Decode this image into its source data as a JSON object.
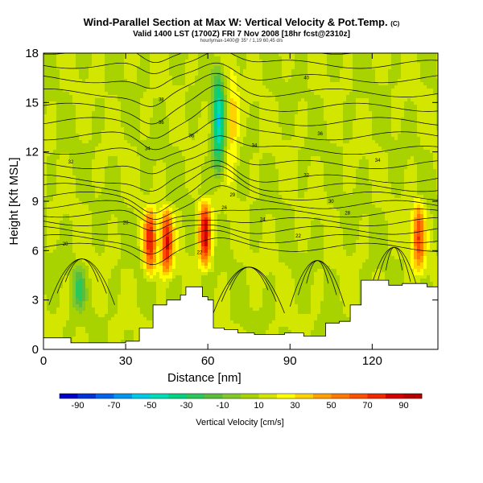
{
  "header": {
    "title": "Wind-Parallel Section at Max W: Vertical Velocity & Pot.Temp.",
    "title_mark": "(C)",
    "subtitle": "Valid 1400 LST (1700Z) FRI 7 Nov 2008 [18hr fcst@2310z]",
    "footnote": "hourlymax-1400@ 35° / 1,19 60,45 d/s"
  },
  "chart_data": {
    "type": "heatmap",
    "title": "Wind-Parallel Section at Max W: Vertical Velocity & Pot.Temp.",
    "xlabel": "Distance [nm]",
    "ylabel": "Height [Kft MSL]",
    "xlim": [
      0,
      144
    ],
    "ylim": [
      0,
      18
    ],
    "xticks": [
      0,
      30,
      60,
      90,
      120
    ],
    "yticks": [
      0,
      3,
      6,
      9,
      12,
      15,
      18
    ],
    "colorbar": {
      "label": "Vertical Velocity [cm/s]",
      "tick_labels": [
        -90,
        -70,
        -50,
        -30,
        -10,
        10,
        30,
        50,
        70,
        90
      ],
      "range": [
        -100,
        100
      ],
      "colors": [
        "#0000c8",
        "#0032dc",
        "#0064f0",
        "#0096f0",
        "#00c8e6",
        "#00dcb4",
        "#00d282",
        "#28c85a",
        "#5abe3c",
        "#82c828",
        "#a8d200",
        "#d2e600",
        "#ffff00",
        "#ffd200",
        "#ffa000",
        "#ff7800",
        "#ff5000",
        "#f02800",
        "#d20000",
        "#b40000"
      ]
    },
    "background_w": 10,
    "updraft_bands": [
      {
        "x": 39,
        "bottom": 4,
        "top": 9,
        "peak": 78
      },
      {
        "x": 45,
        "bottom": 4,
        "top": 9,
        "peak": 82
      },
      {
        "x": 59,
        "bottom": 4.5,
        "top": 9.5,
        "peak": 88
      },
      {
        "x": 69,
        "bottom": 9,
        "top": 18,
        "peak": 35
      },
      {
        "x": 137,
        "bottom": 4.2,
        "top": 9.5,
        "peak": 68
      }
    ],
    "downdraft_bands": [
      {
        "x": 64,
        "bottom": 9.5,
        "top": 18,
        "peak": -45
      },
      {
        "x": 13,
        "bottom": 2,
        "top": 5.5,
        "peak": -20
      }
    ],
    "theta_contour_labels": [
      {
        "x": 43,
        "y": 15.1,
        "label": "38"
      },
      {
        "x": 96,
        "y": 16.4,
        "label": "40"
      },
      {
        "x": 43,
        "y": 13.7,
        "label": "36"
      },
      {
        "x": 54,
        "y": 12.9,
        "label": "36"
      },
      {
        "x": 77,
        "y": 12.3,
        "label": "34"
      },
      {
        "x": 101,
        "y": 13.0,
        "label": "36"
      },
      {
        "x": 38,
        "y": 12.1,
        "label": "34"
      },
      {
        "x": 10,
        "y": 11.3,
        "label": "32"
      },
      {
        "x": 122,
        "y": 11.4,
        "label": "34"
      },
      {
        "x": 69,
        "y": 9.3,
        "label": "29"
      },
      {
        "x": 96,
        "y": 10.5,
        "label": "32"
      },
      {
        "x": 105,
        "y": 8.9,
        "label": "30"
      },
      {
        "x": 111,
        "y": 8.2,
        "label": "28"
      },
      {
        "x": 66,
        "y": 8.5,
        "label": "26"
      },
      {
        "x": 80,
        "y": 7.8,
        "label": "24"
      },
      {
        "x": 30,
        "y": 7.6,
        "label": "20"
      },
      {
        "x": 8,
        "y": 6.3,
        "label": "20"
      },
      {
        "x": 93,
        "y": 6.8,
        "label": "22"
      },
      {
        "x": 57,
        "y": 5.8,
        "label": "22"
      }
    ],
    "terrain": [
      [
        0,
        0.7
      ],
      [
        10,
        0.4
      ],
      [
        20,
        0.4
      ],
      [
        30,
        0.5
      ],
      [
        35,
        1.3
      ],
      [
        40,
        2.7
      ],
      [
        45,
        3
      ],
      [
        50,
        3.3
      ],
      [
        52,
        3.8
      ],
      [
        55,
        3.8
      ],
      [
        58,
        3.2
      ],
      [
        60,
        3
      ],
      [
        62,
        1.3
      ],
      [
        66,
        1.2
      ],
      [
        71,
        1
      ],
      [
        77,
        0.9
      ],
      [
        83,
        0.9
      ],
      [
        88,
        1
      ],
      [
        95,
        0.8
      ],
      [
        103,
        1.6
      ],
      [
        108,
        1.7
      ],
      [
        112,
        2.7
      ],
      [
        116,
        4.2
      ],
      [
        120,
        4.2
      ],
      [
        126,
        3.9
      ],
      [
        131,
        4
      ],
      [
        136,
        4
      ],
      [
        140,
        3.8
      ],
      [
        144,
        4.1
      ]
    ]
  }
}
